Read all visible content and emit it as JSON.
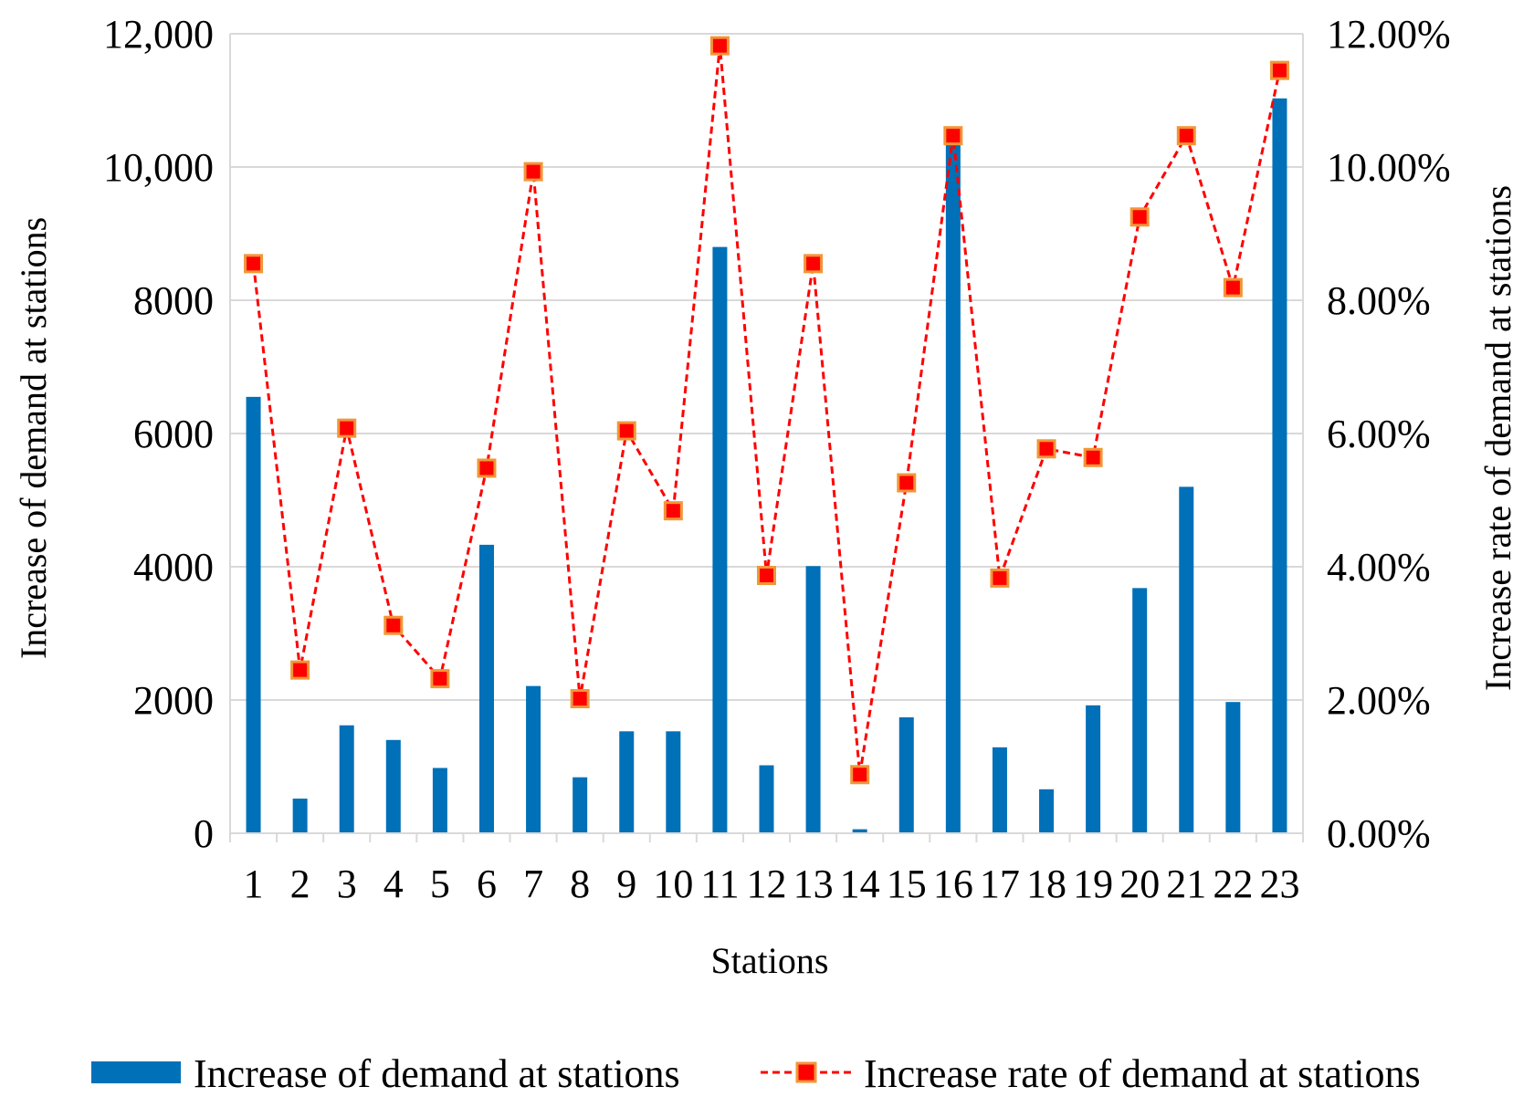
{
  "chart_data": {
    "type": "bar+line",
    "xlabel": "Stations",
    "ylabel_left": "Increase of demand at stations",
    "ylabel_right": "Increase rate of demand at stations",
    "categories": [
      "1",
      "2",
      "3",
      "4",
      "5",
      "6",
      "7",
      "8",
      "9",
      "10",
      "11",
      "12",
      "13",
      "14",
      "15",
      "16",
      "17",
      "18",
      "19",
      "20",
      "21",
      "22",
      "23"
    ],
    "ylim_left": [
      0,
      12000
    ],
    "ylim_right": [
      0,
      12
    ],
    "yticks_left": [
      "0",
      "2000",
      "4000",
      "6000",
      "8000",
      "10,000",
      "12,000"
    ],
    "yticks_right": [
      "0.00%",
      "2.00%",
      "4.00%",
      "6.00%",
      "8.00%",
      "10.00%",
      "12.00%"
    ],
    "grid": "horizontal",
    "legend_position": "bottom",
    "series": [
      {
        "name": "Increase of demand at stations",
        "type": "bar",
        "axis": "left",
        "color": "#0070b8",
        "values": [
          6550,
          520,
          1620,
          1400,
          980,
          4330,
          2210,
          840,
          1530,
          1530,
          8800,
          1020,
          4010,
          60,
          1740,
          10400,
          1290,
          660,
          1920,
          3680,
          5200,
          1970,
          11030
        ]
      },
      {
        "name": "Increase rate of demand at stations",
        "type": "line",
        "axis": "right",
        "unit": "%",
        "color": "#ff0000",
        "marker_fill": "#ff0000",
        "marker_edge": "#f29637",
        "style": "dashed",
        "values": [
          8.55,
          2.45,
          6.08,
          3.12,
          2.32,
          5.48,
          9.93,
          2.02,
          6.04,
          4.84,
          11.82,
          3.87,
          8.55,
          0.88,
          5.26,
          10.47,
          3.83,
          5.77,
          5.64,
          9.25,
          10.47,
          8.19,
          11.45
        ]
      }
    ]
  }
}
